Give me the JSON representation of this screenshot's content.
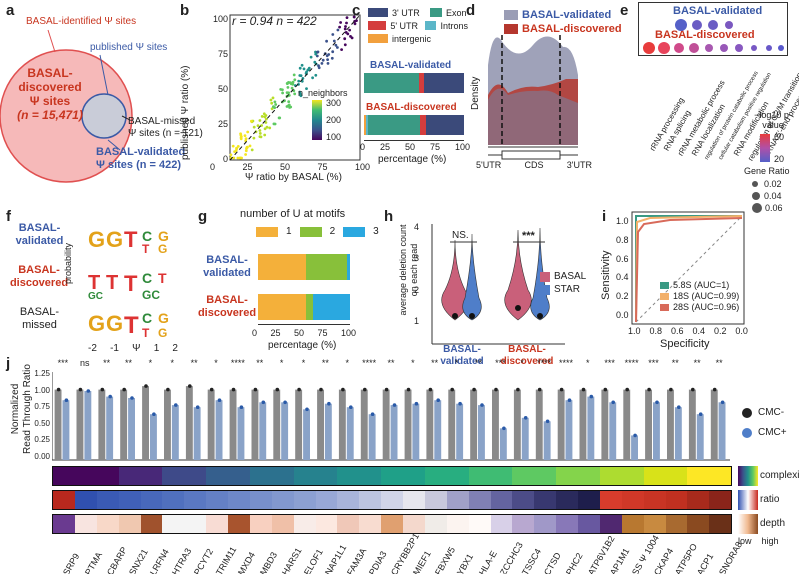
{
  "colors": {
    "basal_blue": "#3b5aa6",
    "basal_red": "#c8351f",
    "star_blue": "#4f7ec9",
    "basal_pink": "#c9607a",
    "bar_gray": "#8a8a8a",
    "bar_blue": "#8aa3c8"
  },
  "panels": {
    "a": {
      "label": "a",
      "identified": "BASAL-identified Ψ sites",
      "published": "published Ψ sites",
      "discovered_line1": "BASAL-",
      "discovered_line2": "discovered",
      "discovered_line3": "Ψ sites",
      "discovered_n": "(n = 15,471)",
      "missed_line1": "BASAL-missed",
      "missed_line2": "Ψ sites (n = 121)",
      "validated_line1": "BASAL-validated",
      "validated_line2": "Ψ sites (n = 422)"
    },
    "b": {
      "label": "b",
      "stats": "r = 0.94   n = 422",
      "xlabel": "Ψ ratio by BASAL (%)",
      "ylabel": "published Ψ ratio (%)",
      "xticks": [
        "0",
        "25",
        "50",
        "75",
        "100"
      ],
      "yticks": [
        "0",
        "25",
        "50",
        "75",
        "100"
      ],
      "legend_title": "n_neighbors",
      "legend_ticks": [
        "300",
        "200",
        "100"
      ]
    },
    "c": {
      "label": "c",
      "legend": [
        "3' UTR",
        "Exon",
        "5' UTR",
        "Introns",
        "intergenic"
      ],
      "row1": "BASAL-validated",
      "row2": "BASAL-discovered",
      "xlabel": "percentage (%)",
      "xticks": [
        "0",
        "25",
        "50",
        "75",
        "100"
      ]
    },
    "d": {
      "label": "d",
      "ylabel": "Density",
      "legend": [
        "BASAL-validated",
        "BASAL-discovered"
      ],
      "xticks": [
        "5'UTR",
        "CDS",
        "3'UTR"
      ]
    },
    "e": {
      "label": "e",
      "rows": [
        "BASAL-validated",
        "BASAL-discovered"
      ],
      "terms": [
        "rRNA processing",
        "RNA splicing",
        "rRNA metabolic process",
        "RNA localization",
        "regulation of protein catabolic process",
        "cellular catabolism positive regulation",
        "RNA modification",
        "regulation of G2/M transition",
        "ncRNA 5'-end processing"
      ],
      "pvalue_title": "−log10 p-value",
      "pvalue_ticks": [
        "60",
        "20"
      ],
      "ratio_title": "Gene Ratio",
      "ratio_ticks": [
        "0.02",
        "0.04",
        "0.06"
      ]
    },
    "f": {
      "label": "f",
      "rows": [
        "BASAL-\nvalidated",
        "BASAL-\ndiscovered",
        "BASAL-\nmissed"
      ],
      "ylabel": "probability",
      "yticks": [
        "1.00",
        "0.75",
        "0.50",
        "0.25",
        "0.00"
      ],
      "xticks": [
        "-2",
        "-1",
        "Ψ",
        "1",
        "2"
      ]
    },
    "g": {
      "label": "g",
      "title": "number of U at motifs",
      "legend": [
        "1",
        "2",
        "3"
      ],
      "rows": [
        "BASAL-\nvalidated",
        "BASAL-\ndiscovered"
      ],
      "xlabel": "percentage (%)",
      "xticks": [
        "0",
        "25",
        "50",
        "75",
        "100"
      ]
    },
    "h": {
      "label": "h",
      "ylabel": "average deletion count\non each read",
      "yticks": [
        "1",
        "2",
        "3",
        "4"
      ],
      "ns": "NS.",
      "sig": "***",
      "legend": [
        "BASAL",
        "STAR"
      ],
      "groups": [
        "BASAL-\nvalidated",
        "BASAL-\ndiscovered"
      ]
    },
    "i": {
      "label": "i",
      "xlabel": "Specificity",
      "ylabel": "Sensitivity",
      "ticks": [
        "1.0",
        "0.8",
        "0.6",
        "0.4",
        "0.2",
        "0.0"
      ],
      "legend": [
        "5.8S (AUC=1)",
        "18S (AUC=0.99)",
        "28S (AUC=0.96)"
      ]
    },
    "j": {
      "label": "j",
      "ylabel": "Normalized\nRead Through Ratio",
      "yticks": [
        "0.00",
        "0.25",
        "0.50",
        "0.75",
        "1.00",
        "1.25"
      ],
      "legend": [
        "CMC-",
        "CMC+"
      ],
      "bar_labels": [
        "complexity",
        "ratio",
        "depth"
      ],
      "depth_low": "low",
      "depth_high": "high",
      "genes": [
        "SRP9",
        "PTMA",
        "CBARP",
        "SNX21",
        "LRFN4",
        "HTRA3",
        "PCYT2",
        "TRIM11",
        "MXD4",
        "MBD3",
        "HARS1",
        "ELOF1",
        "NAP1L1",
        "FAM3A",
        "PDIA3",
        "CRYBB2P1",
        "MIEF1",
        "FBXW5",
        "YBX1",
        "HLA-E",
        "ZCCHC3",
        "TSSC4",
        "CTSD",
        "PHC2",
        "ATP6V1B2",
        "AP1M1",
        "SS Ψ 1004",
        "CKAP4",
        "ATP5PO",
        "ACP1",
        "SNORA8"
      ],
      "sig": [
        "***",
        "ns",
        "**",
        "**",
        "*",
        "*",
        "**",
        "*",
        "****",
        "**",
        "*",
        "*",
        "**",
        "*",
        "****",
        "**",
        "*",
        "**",
        "*",
        "**",
        "***",
        "*",
        "****",
        "****",
        "*",
        "***",
        "****",
        "***",
        "**",
        "**",
        "**"
      ]
    }
  },
  "chart_data": [
    {
      "type": "scatter",
      "panel": "b",
      "xlabel": "Ψ ratio by BASAL (%)",
      "ylabel": "published Ψ ratio (%)",
      "xlim": [
        0,
        100
      ],
      "ylim": [
        0,
        100
      ],
      "r": 0.94,
      "n": 422
    },
    {
      "type": "bar",
      "panel": "c",
      "stacked": true,
      "categories": [
        "BASAL-validated",
        "BASAL-discovered"
      ],
      "series": [
        {
          "name": "Exon",
          "values": [
            55,
            52
          ]
        },
        {
          "name": "5' UTR",
          "values": [
            5,
            6
          ]
        },
        {
          "name": "3' UTR",
          "values": [
            40,
            38
          ]
        },
        {
          "name": "intergenic",
          "values": [
            0,
            2
          ]
        },
        {
          "name": "Introns",
          "values": [
            0,
            2
          ]
        }
      ]
    },
    {
      "type": "bar",
      "panel": "g",
      "stacked": true,
      "categories": [
        "BASAL-validated",
        "BASAL-discovered"
      ],
      "series": [
        {
          "name": "1",
          "values": [
            52,
            52
          ]
        },
        {
          "name": "2",
          "values": [
            45,
            8
          ]
        },
        {
          "name": "3",
          "values": [
            3,
            40
          ]
        }
      ]
    },
    {
      "type": "line",
      "panel": "i",
      "xlabel": "Specificity",
      "ylabel": "Sensitivity",
      "series": [
        {
          "name": "5.8S (AUC=1)",
          "auc": 1.0
        },
        {
          "name": "18S (AUC=0.99)",
          "auc": 0.99
        },
        {
          "name": "28S (AUC=0.96)",
          "auc": 0.96
        }
      ]
    },
    {
      "type": "bar",
      "panel": "j",
      "ylim": [
        0,
        1.25
      ],
      "categories": [
        "SRP9",
        "PTMA",
        "CBARP",
        "SNX21",
        "LRFN4",
        "HTRA3",
        "PCYT2",
        "TRIM11",
        "MXD4",
        "MBD3",
        "HARS1",
        "ELOF1",
        "NAP1L1",
        "FAM3A",
        "PDIA3",
        "CRYBB2P1",
        "MIEF1",
        "FBXW5",
        "YBX1",
        "HLA-E",
        "ZCCHC3",
        "TSSC4",
        "CTSD",
        "PHC2",
        "ATP6V1B2",
        "AP1M1",
        "SS Ψ 1004",
        "CKAP4",
        "ATP5PO",
        "ACP1",
        "SNORA8"
      ],
      "series": [
        {
          "name": "CMC-",
          "values": [
            1.0,
            1.0,
            1.0,
            1.0,
            1.05,
            1.0,
            1.05,
            1.0,
            1.0,
            1.0,
            1.0,
            1.0,
            1.0,
            1.0,
            1.0,
            1.0,
            1.0,
            1.0,
            1.0,
            1.0,
            1.0,
            1.0,
            1.0,
            1.0,
            1.0,
            1.0,
            1.0,
            1.0,
            1.0,
            1.0,
            1.0
          ]
        },
        {
          "name": "CMC+",
          "values": [
            0.85,
            0.98,
            0.9,
            0.88,
            0.65,
            0.78,
            0.75,
            0.85,
            0.75,
            0.82,
            0.82,
            0.72,
            0.8,
            0.75,
            0.65,
            0.78,
            0.8,
            0.85,
            0.8,
            0.78,
            0.45,
            0.6,
            0.55,
            0.85,
            0.9,
            0.82,
            0.35,
            0.82,
            0.75,
            0.65,
            0.82
          ]
        }
      ]
    }
  ]
}
